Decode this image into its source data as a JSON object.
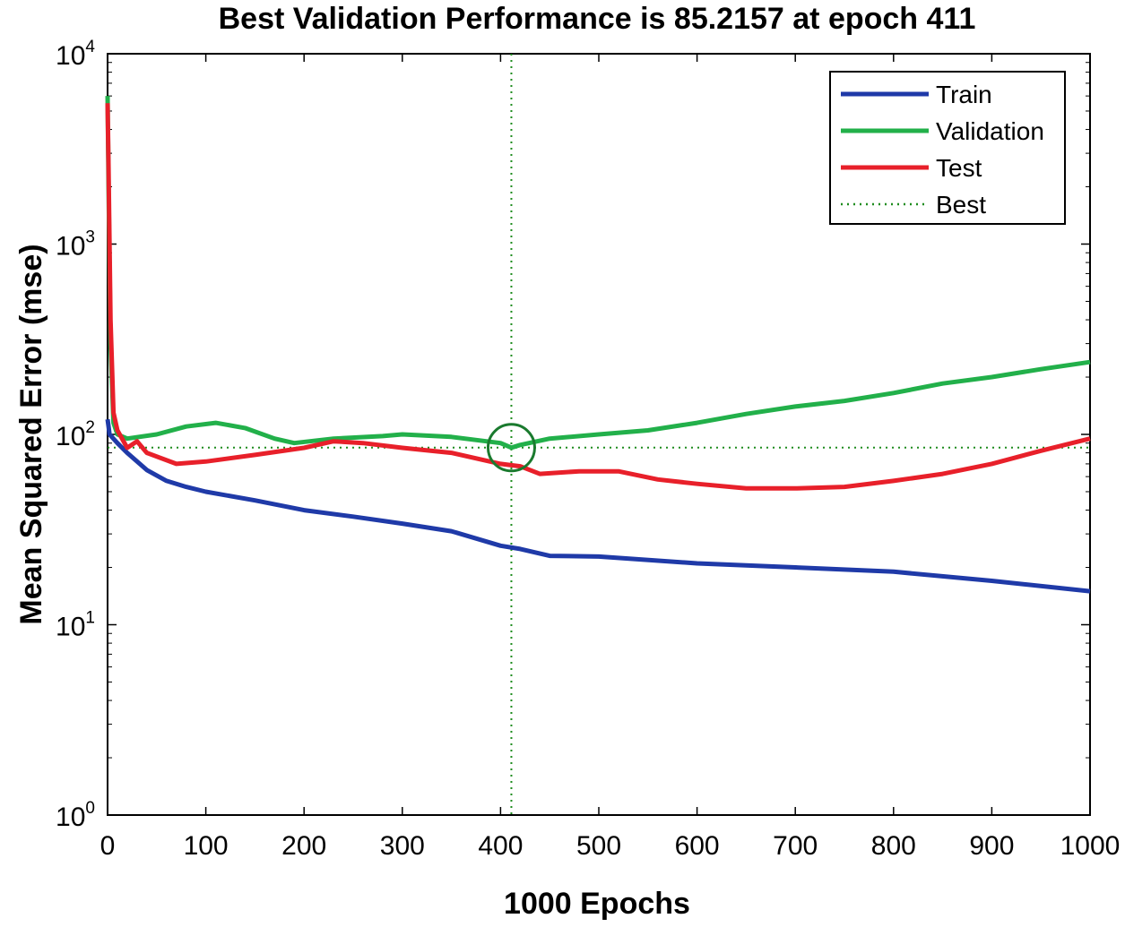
{
  "chart_data": {
    "type": "line",
    "title": "Best Validation Performance is 85.2157 at epoch 411",
    "xlabel": "1000 Epochs",
    "ylabel": "Mean Squared Error  (mse)",
    "xlim": [
      0,
      1000
    ],
    "ylim": [
      1,
      10000
    ],
    "yscale": "log",
    "x_ticks": [
      "0",
      "100",
      "200",
      "300",
      "400",
      "500",
      "600",
      "700",
      "800",
      "900",
      "1000"
    ],
    "y_ticks": [
      {
        "value": 1,
        "base": "10",
        "exp": "0"
      },
      {
        "value": 10,
        "base": "10",
        "exp": "1"
      },
      {
        "value": 100,
        "base": "10",
        "exp": "2"
      },
      {
        "value": 1000,
        "base": "10",
        "exp": "3"
      },
      {
        "value": 10000,
        "base": "10",
        "exp": "4"
      }
    ],
    "grid": false,
    "legend_position": "top-right",
    "best": {
      "epoch": 411,
      "value": 85.2157,
      "name": "Best",
      "color": "#1e8c1e"
    },
    "series": [
      {
        "name": "Train",
        "color": "#1f3aa8",
        "points": [
          [
            0,
            120
          ],
          [
            1,
            110
          ],
          [
            2,
            100
          ],
          [
            10,
            90
          ],
          [
            20,
            80
          ],
          [
            40,
            65
          ],
          [
            60,
            57
          ],
          [
            80,
            53
          ],
          [
            100,
            50
          ],
          [
            150,
            45
          ],
          [
            200,
            40
          ],
          [
            250,
            37
          ],
          [
            300,
            34
          ],
          [
            350,
            31
          ],
          [
            400,
            26
          ],
          [
            420,
            25
          ],
          [
            450,
            23
          ],
          [
            500,
            22.8
          ],
          [
            600,
            21
          ],
          [
            700,
            20
          ],
          [
            800,
            19
          ],
          [
            900,
            17
          ],
          [
            1000,
            15
          ]
        ]
      },
      {
        "name": "Validation",
        "color": "#22b04a",
        "points": [
          [
            0,
            6000
          ],
          [
            1,
            2000
          ],
          [
            3,
            300
          ],
          [
            6,
            115
          ],
          [
            10,
            100
          ],
          [
            20,
            95
          ],
          [
            50,
            100
          ],
          [
            80,
            110
          ],
          [
            110,
            115
          ],
          [
            140,
            108
          ],
          [
            170,
            95
          ],
          [
            190,
            90
          ],
          [
            230,
            95
          ],
          [
            280,
            98
          ],
          [
            300,
            100
          ],
          [
            350,
            97
          ],
          [
            400,
            90
          ],
          [
            411,
            85.2157
          ],
          [
            420,
            88
          ],
          [
            450,
            95
          ],
          [
            500,
            100
          ],
          [
            550,
            105
          ],
          [
            600,
            115
          ],
          [
            650,
            128
          ],
          [
            700,
            140
          ],
          [
            750,
            150
          ],
          [
            800,
            165
          ],
          [
            850,
            185
          ],
          [
            900,
            200
          ],
          [
            950,
            220
          ],
          [
            1000,
            240
          ]
        ]
      },
      {
        "name": "Test",
        "color": "#e8202a",
        "points": [
          [
            0,
            5500
          ],
          [
            1,
            2500
          ],
          [
            3,
            400
          ],
          [
            6,
            130
          ],
          [
            10,
            105
          ],
          [
            20,
            85
          ],
          [
            30,
            92
          ],
          [
            40,
            80
          ],
          [
            70,
            70
          ],
          [
            100,
            72
          ],
          [
            150,
            78
          ],
          [
            200,
            85
          ],
          [
            230,
            92
          ],
          [
            260,
            90
          ],
          [
            300,
            85
          ],
          [
            350,
            80
          ],
          [
            400,
            70
          ],
          [
            420,
            68
          ],
          [
            440,
            62
          ],
          [
            480,
            64
          ],
          [
            520,
            64
          ],
          [
            560,
            58
          ],
          [
            600,
            55
          ],
          [
            650,
            52
          ],
          [
            700,
            52
          ],
          [
            750,
            53
          ],
          [
            800,
            57
          ],
          [
            850,
            62
          ],
          [
            900,
            70
          ],
          [
            950,
            82
          ],
          [
            1000,
            95
          ]
        ]
      }
    ]
  }
}
